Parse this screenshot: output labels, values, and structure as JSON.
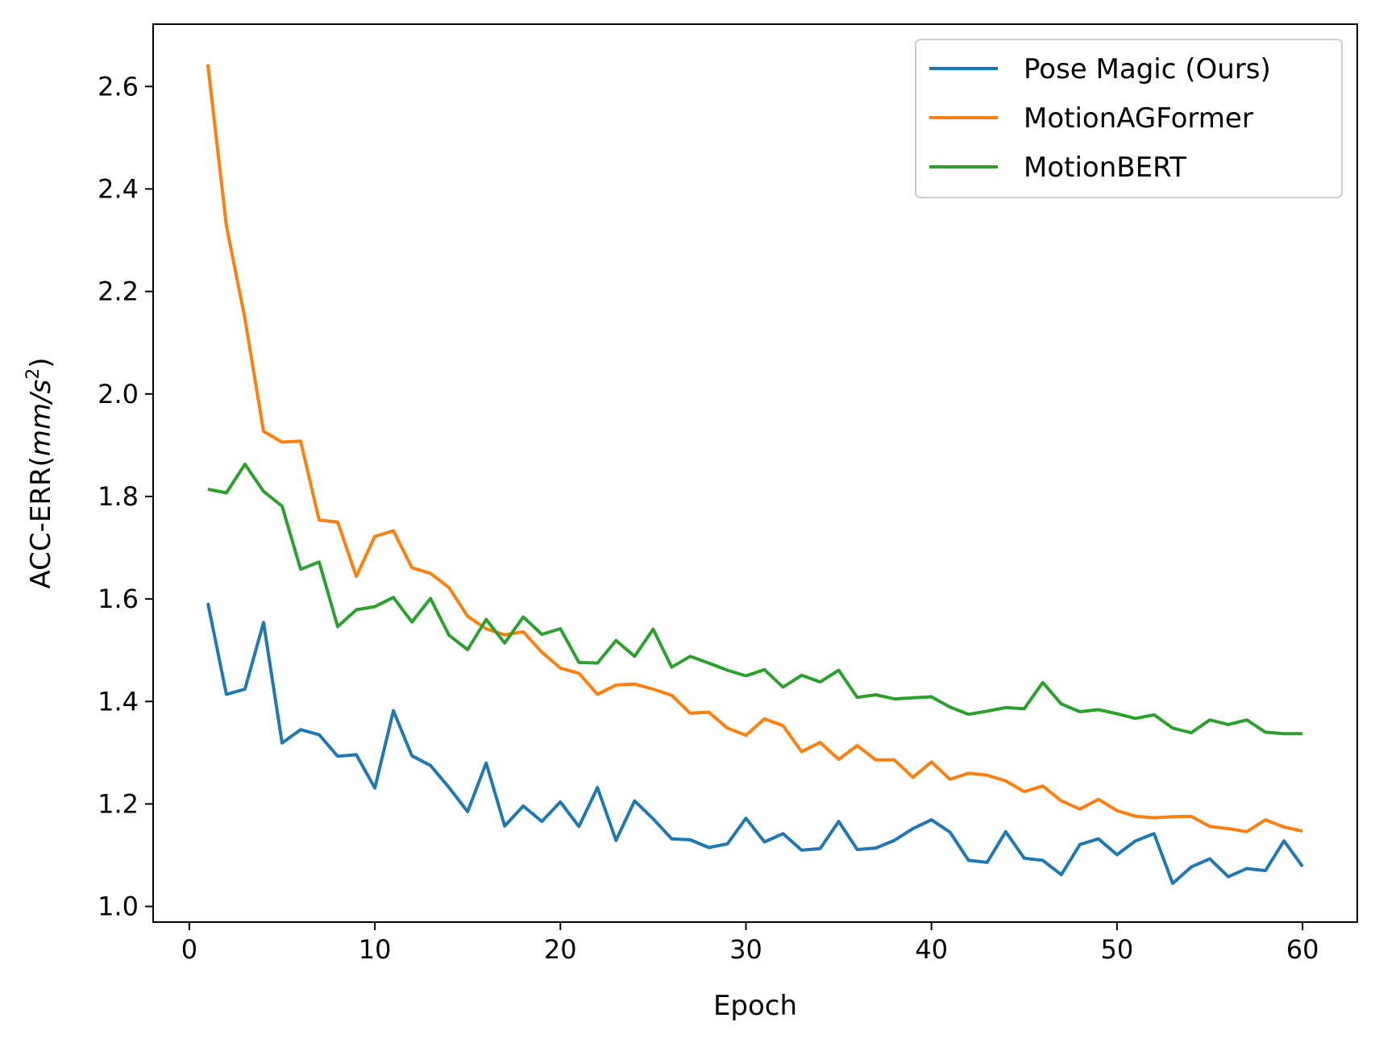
{
  "chart_data": {
    "type": "line",
    "xlabel": "Epoch",
    "ylabel": "ACC-ERR(",
    "ylabel_math": "mm/s",
    "ylabel_sup": "2",
    "ylabel_close": ")",
    "xlim": [
      -1.95,
      62.95
    ],
    "ylim": [
      0.9695,
      2.7215
    ],
    "xticks": [
      0,
      10,
      20,
      30,
      40,
      50,
      60
    ],
    "yticks": [
      1.0,
      1.2,
      1.4,
      1.6,
      1.8,
      2.0,
      2.2,
      2.4,
      2.6
    ],
    "ytick_labels": [
      "1.0",
      "1.2",
      "1.4",
      "1.6",
      "1.8",
      "2.0",
      "2.2",
      "2.4",
      "2.6"
    ],
    "xtick_labels": [
      "0",
      "10",
      "20",
      "30",
      "40",
      "50",
      "60"
    ],
    "legend_position": "top-right",
    "grid": false,
    "x": [
      1,
      2,
      3,
      4,
      5,
      6,
      7,
      8,
      9,
      10,
      11,
      12,
      13,
      14,
      15,
      16,
      17,
      18,
      19,
      20,
      21,
      22,
      23,
      24,
      25,
      26,
      27,
      28,
      29,
      30,
      31,
      32,
      33,
      34,
      35,
      36,
      37,
      38,
      39,
      40,
      41,
      42,
      43,
      44,
      45,
      46,
      47,
      48,
      49,
      50,
      51,
      52,
      53,
      54,
      55,
      56,
      57,
      58,
      59,
      60
    ],
    "series": [
      {
        "name": "Pose Magic (Ours)",
        "color": "#1f77b4",
        "values": [
          1.592,
          1.414,
          1.424,
          1.554,
          1.319,
          1.345,
          1.335,
          1.293,
          1.296,
          1.231,
          1.382,
          1.294,
          1.275,
          1.232,
          1.185,
          1.28,
          1.157,
          1.196,
          1.166,
          1.204,
          1.156,
          1.232,
          1.129,
          1.206,
          1.171,
          1.132,
          1.13,
          1.115,
          1.122,
          1.172,
          1.126,
          1.142,
          1.11,
          1.113,
          1.166,
          1.111,
          1.114,
          1.129,
          1.152,
          1.169,
          1.145,
          1.09,
          1.086,
          1.146,
          1.094,
          1.09,
          1.062,
          1.121,
          1.132,
          1.101,
          1.128,
          1.142,
          1.045,
          1.077,
          1.093,
          1.058,
          1.074,
          1.07,
          1.128,
          1.078
        ]
      },
      {
        "name": "MotionAGFormer",
        "color": "#ff7f0e",
        "values": [
          2.643,
          2.328,
          2.147,
          1.927,
          1.906,
          1.908,
          1.754,
          1.75,
          1.644,
          1.722,
          1.733,
          1.661,
          1.65,
          1.622,
          1.566,
          1.542,
          1.53,
          1.536,
          1.496,
          1.465,
          1.455,
          1.414,
          1.432,
          1.434,
          1.424,
          1.412,
          1.377,
          1.379,
          1.348,
          1.334,
          1.366,
          1.353,
          1.302,
          1.32,
          1.287,
          1.314,
          1.286,
          1.286,
          1.252,
          1.282,
          1.248,
          1.26,
          1.256,
          1.245,
          1.224,
          1.235,
          1.206,
          1.19,
          1.209,
          1.187,
          1.176,
          1.173,
          1.175,
          1.176,
          1.156,
          1.152,
          1.146,
          1.169,
          1.155,
          1.147
        ]
      },
      {
        "name": "MotionBERT",
        "color": "#2ca02c",
        "values": [
          1.814,
          1.807,
          1.863,
          1.81,
          1.781,
          1.658,
          1.672,
          1.546,
          1.579,
          1.585,
          1.603,
          1.555,
          1.601,
          1.529,
          1.501,
          1.56,
          1.514,
          1.565,
          1.531,
          1.542,
          1.476,
          1.475,
          1.519,
          1.488,
          1.541,
          1.467,
          1.488,
          1.475,
          1.461,
          1.45,
          1.462,
          1.428,
          1.451,
          1.438,
          1.461,
          1.408,
          1.413,
          1.405,
          1.407,
          1.409,
          1.389,
          1.375,
          1.381,
          1.388,
          1.386,
          1.437,
          1.395,
          1.38,
          1.384,
          1.376,
          1.367,
          1.374,
          1.348,
          1.339,
          1.364,
          1.355,
          1.364,
          1.34,
          1.337,
          1.337
        ]
      }
    ]
  }
}
